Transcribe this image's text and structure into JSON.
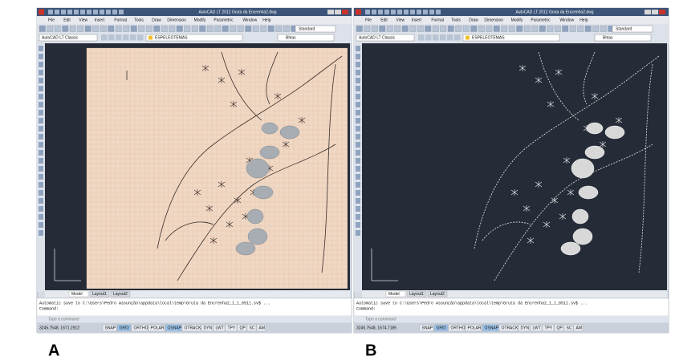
{
  "panels": [
    {
      "label": "A",
      "title": "AutoCAD LT 2012   Gruta da Encrenha2.dwg",
      "workspace": "AutoCAD LT Classic",
      "layer": "ESPELEOTEMAS",
      "style": "Standard",
      "linetype": "Bhlas",
      "menu": [
        "File",
        "Edit",
        "View",
        "Insert",
        "Format",
        "Tools",
        "Draw",
        "Dimension",
        "Modify",
        "Parametric",
        "Window",
        "Help"
      ],
      "tabs": [
        "Model",
        "Layout1",
        "Layout2"
      ],
      "command_lines": [
        "Automatic save to C:\\Users\\Pedro Assunção\\appdata\\local\\temp\\Gruta da Encrenha2_1_1_6511.sv$ ...",
        "Command:"
      ],
      "prompt": "Type a command",
      "coordinates": "3245.7548, 1671.2912",
      "status_buttons": [
        "SNAP",
        "GRID",
        "ORTHO",
        "POLAR",
        "OSNAP",
        "OTRACK",
        "DYN",
        "LWT",
        "TPY",
        "QP",
        "SC",
        "AM"
      ]
    },
    {
      "label": "B",
      "title": "AutoCAD LT 2012   Gruta da Encrenha2.dwg",
      "workspace": "AutoCAD LT Classic",
      "layer": "ESPELEOTEMAS",
      "style": "Standard",
      "linetype": "Bhlas",
      "menu": [
        "File",
        "Edit",
        "View",
        "Insert",
        "Format",
        "Tools",
        "Draw",
        "Dimension",
        "Modify",
        "Parametric",
        "Window",
        "Help"
      ],
      "tabs": [
        "Model",
        "Layout1",
        "Layout2"
      ],
      "command_lines": [
        "Automatic save to C:\\Users\\Pedro Assunção\\appdata\\local\\temp\\Gruta da Encrenha2_1_1_6511.sv$ ...",
        "Command:"
      ],
      "prompt": "Type a command",
      "coordinates": "3245.7548, 1674.7185",
      "status_buttons": [
        "SNAP",
        "GRID",
        "ORTHO",
        "POLAR",
        "OSNAP",
        "OTRACK",
        "DYN",
        "LWT",
        "TPY",
        "QP",
        "SC",
        "AM"
      ]
    }
  ]
}
